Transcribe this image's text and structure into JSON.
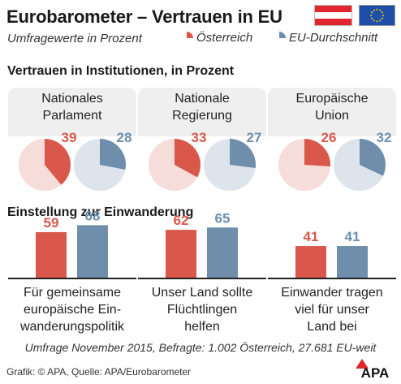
{
  "header": {
    "title": "Eurobarometer – Vertrauen in EU",
    "subtitle": "Umfragewerte in Prozent"
  },
  "legend": {
    "austria": "Österreich",
    "eu": "EU-Durchschnitt"
  },
  "colors": {
    "austria": "#d9584b",
    "austria_light": "#f6ddd9",
    "eu": "#6e8eac",
    "eu_light": "#dde4ec",
    "flag_red": "#e0262e",
    "eu_blue": "#1f4fa8",
    "eu_star": "#f5d000"
  },
  "icons": [
    "austria-flag-icon",
    "eu-flag-icon",
    "apa-logo-icon"
  ],
  "sections": {
    "institutions_title": "Vertrauen in Institutionen, in Prozent",
    "immigration_title": "Einstellung zur Einwanderung"
  },
  "chart_data": [
    {
      "type": "pie",
      "title": "Vertrauen in Institutionen, in Prozent",
      "categories": [
        "Nationales\nParlament",
        "Nationale\nRegierung",
        "Europäische\nUnion"
      ],
      "series": [
        {
          "name": "Österreich",
          "values": [
            39,
            33,
            26
          ]
        },
        {
          "name": "EU-Durchschnitt",
          "values": [
            28,
            27,
            32
          ]
        }
      ]
    },
    {
      "type": "bar",
      "title": "Einstellung zur Einwanderung",
      "categories": [
        "Für gemeinsame\neuropäische Ein-\nwanderungspolitik",
        "Unser Land sollte\nFlüchtlingen\nhelfen",
        "Einwander tragen\nviel für unser\nLand bei"
      ],
      "series": [
        {
          "name": "Österreich",
          "values": [
            59,
            62,
            41
          ]
        },
        {
          "name": "EU-Durchschnitt",
          "values": [
            68,
            65,
            41
          ]
        }
      ]
    }
  ],
  "footnote": "Umfrage November 2015, Befragte: 1.002 Österreich, 27.681 EU-weit",
  "credit": "Grafik: © APA, Quelle: APA/Eurobarometer",
  "logo_text": "APA"
}
